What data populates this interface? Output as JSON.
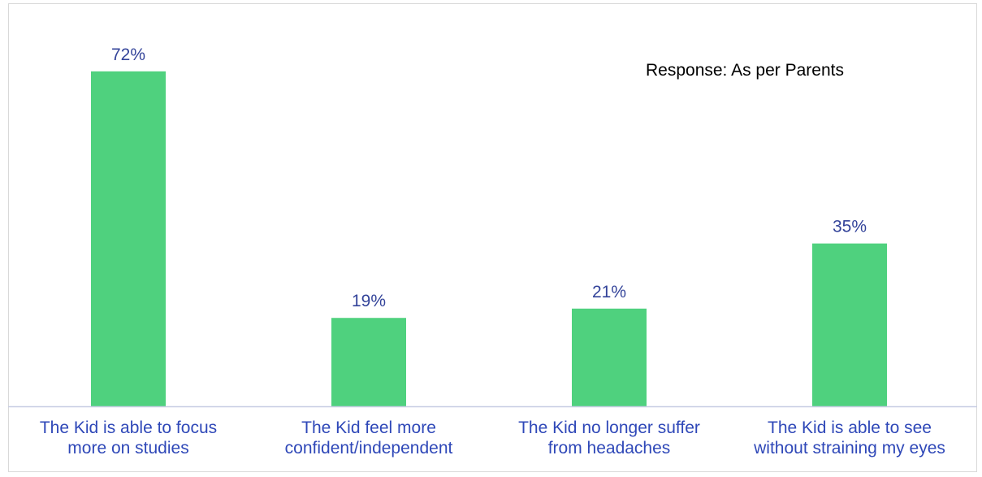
{
  "chart_data": {
    "type": "bar",
    "title": "",
    "xlabel": "",
    "ylabel": "",
    "annotation": "Response: As per Parents",
    "categories": [
      [
        "The Kid is able to focus",
        "more on studies"
      ],
      [
        "The Kid feel more",
        "confident/independent"
      ],
      [
        "The Kid no longer suffer",
        "from headaches"
      ],
      [
        "The Kid is able to see",
        "without straining my eyes"
      ]
    ],
    "values": [
      72,
      19,
      21,
      35
    ],
    "value_labels": [
      "72%",
      "19%",
      "21%",
      "35%"
    ],
    "ylim": [
      0,
      80
    ],
    "grid": false,
    "legend": "none",
    "colors": {
      "bar": "#4fd17e",
      "value_text": "#34449a",
      "category_text": "#2f48b8",
      "axis": "#c8cde3",
      "annotation_text": "#000000"
    }
  }
}
